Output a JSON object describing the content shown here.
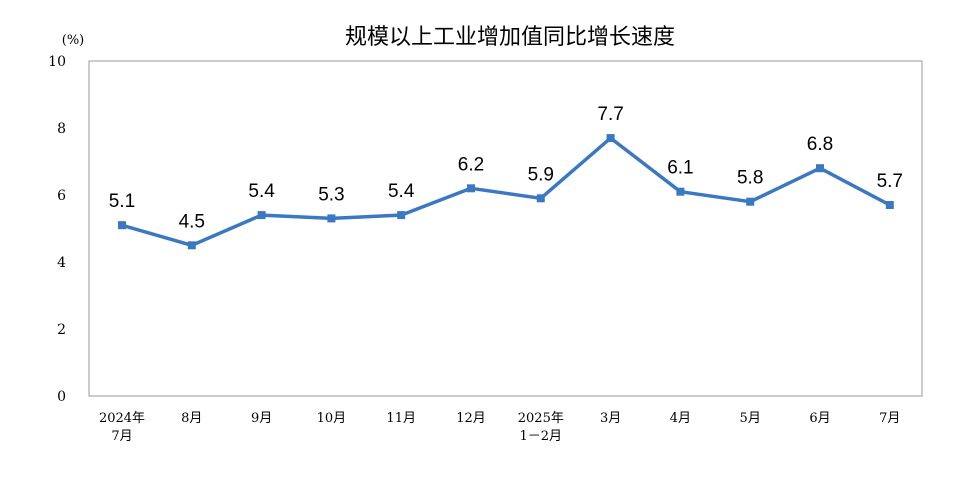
{
  "chart_data": {
    "type": "line",
    "title": "规模以上工业增加值同比增长速度",
    "unit_label": "(%)",
    "categories": [
      [
        "2024年",
        "7月"
      ],
      [
        "8月"
      ],
      [
        "9月"
      ],
      [
        "10月"
      ],
      [
        "11月"
      ],
      [
        "12月"
      ],
      [
        "2025年",
        "1－2月"
      ],
      [
        "3月"
      ],
      [
        "4月"
      ],
      [
        "5月"
      ],
      [
        "6月"
      ],
      [
        "7月"
      ]
    ],
    "series": [
      {
        "values": [
          5.1,
          4.5,
          5.4,
          5.3,
          5.4,
          6.2,
          5.9,
          7.7,
          6.1,
          5.8,
          6.8,
          5.7
        ],
        "data_labels": [
          "5.1",
          "4.5",
          "5.4",
          "5.3",
          "5.4",
          "6.2",
          "5.9",
          "7.7",
          "6.1",
          "5.8",
          "6.8",
          "5.7"
        ],
        "color": "#3A78C2",
        "marker": "square"
      }
    ],
    "y_ticks": [
      "0",
      "2",
      "4",
      "6",
      "8",
      "10"
    ],
    "ylim": [
      0,
      10
    ],
    "grid": false,
    "legend": "none"
  }
}
